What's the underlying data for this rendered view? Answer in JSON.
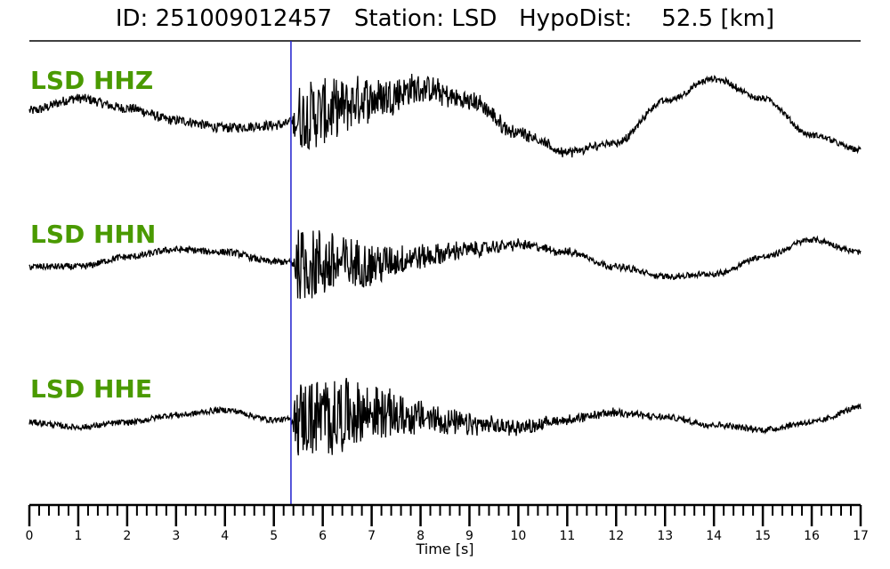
{
  "title": "ID: 251009012457   Station: LSD   HypoDist:    52.5 [km]",
  "colors": {
    "label": "#4a9a00",
    "trace": "#000000",
    "pick_line": "#1f1fcc",
    "axis": "#000000"
  },
  "chart_data": {
    "type": "line",
    "title": "ID: 251009012457   Station: LSD   HypoDist:    52.5 [km]",
    "xlabel": "Time [s]",
    "xlim": [
      0,
      17
    ],
    "x_ticks": [
      "0",
      "1",
      "2",
      "3",
      "4",
      "5",
      "6",
      "7",
      "8",
      "9",
      "10",
      "11",
      "12",
      "13",
      "14",
      "15",
      "16",
      "17"
    ],
    "minor_tick_step": 0.2,
    "pick_time": 5.35,
    "grid": false,
    "series": [
      {
        "name": "LSD HHZ",
        "lowfreq": [
          [
            0,
            0.1
          ],
          [
            1,
            0.35
          ],
          [
            2,
            0.15
          ],
          [
            3,
            -0.1
          ],
          [
            4,
            -0.25
          ],
          [
            5,
            -0.2
          ],
          [
            6,
            0.05
          ],
          [
            7,
            0.35
          ],
          [
            8,
            0.55
          ],
          [
            9,
            0.3
          ],
          [
            10,
            -0.35
          ],
          [
            11,
            -0.75
          ],
          [
            12,
            -0.55
          ],
          [
            13,
            0.3
          ],
          [
            14,
            0.75
          ],
          [
            15,
            0.35
          ],
          [
            16,
            -0.4
          ],
          [
            17,
            -0.7
          ]
        ],
        "noise_pre": 0.1,
        "burst_amp": 0.7,
        "burst_peak": 6.0,
        "burst_decay": 2.2,
        "noise_post": 0.06
      },
      {
        "name": "LSD HHN",
        "lowfreq": [
          [
            0,
            0.0
          ],
          [
            1,
            0.0
          ],
          [
            2,
            0.2
          ],
          [
            3,
            0.35
          ],
          [
            4,
            0.3
          ],
          [
            5,
            0.1
          ],
          [
            6,
            0.05
          ],
          [
            7,
            0.05
          ],
          [
            8,
            0.2
          ],
          [
            9,
            0.35
          ],
          [
            10,
            0.45
          ],
          [
            11,
            0.3
          ],
          [
            12,
            0.0
          ],
          [
            13,
            -0.2
          ],
          [
            14,
            -0.15
          ],
          [
            15,
            0.2
          ],
          [
            16,
            0.55
          ],
          [
            17,
            0.3
          ]
        ],
        "noise_pre": 0.07,
        "burst_amp": 0.75,
        "burst_peak": 6.0,
        "burst_decay": 1.8,
        "noise_post": 0.06
      },
      {
        "name": "LSD HHE",
        "lowfreq": [
          [
            0,
            0.0
          ],
          [
            1,
            -0.1
          ],
          [
            2,
            0.0
          ],
          [
            3,
            0.15
          ],
          [
            4,
            0.25
          ],
          [
            5,
            0.05
          ],
          [
            6,
            0.1
          ],
          [
            7,
            0.2
          ],
          [
            8,
            0.1
          ],
          [
            9,
            -0.05
          ],
          [
            10,
            -0.1
          ],
          [
            11,
            0.05
          ],
          [
            12,
            0.2
          ],
          [
            13,
            0.1
          ],
          [
            14,
            -0.05
          ],
          [
            15,
            -0.15
          ],
          [
            16,
            0.0
          ],
          [
            17,
            0.3
          ]
        ],
        "noise_pre": 0.06,
        "burst_amp": 0.8,
        "burst_peak": 6.3,
        "burst_decay": 2.0,
        "noise_post": 0.06
      }
    ]
  }
}
